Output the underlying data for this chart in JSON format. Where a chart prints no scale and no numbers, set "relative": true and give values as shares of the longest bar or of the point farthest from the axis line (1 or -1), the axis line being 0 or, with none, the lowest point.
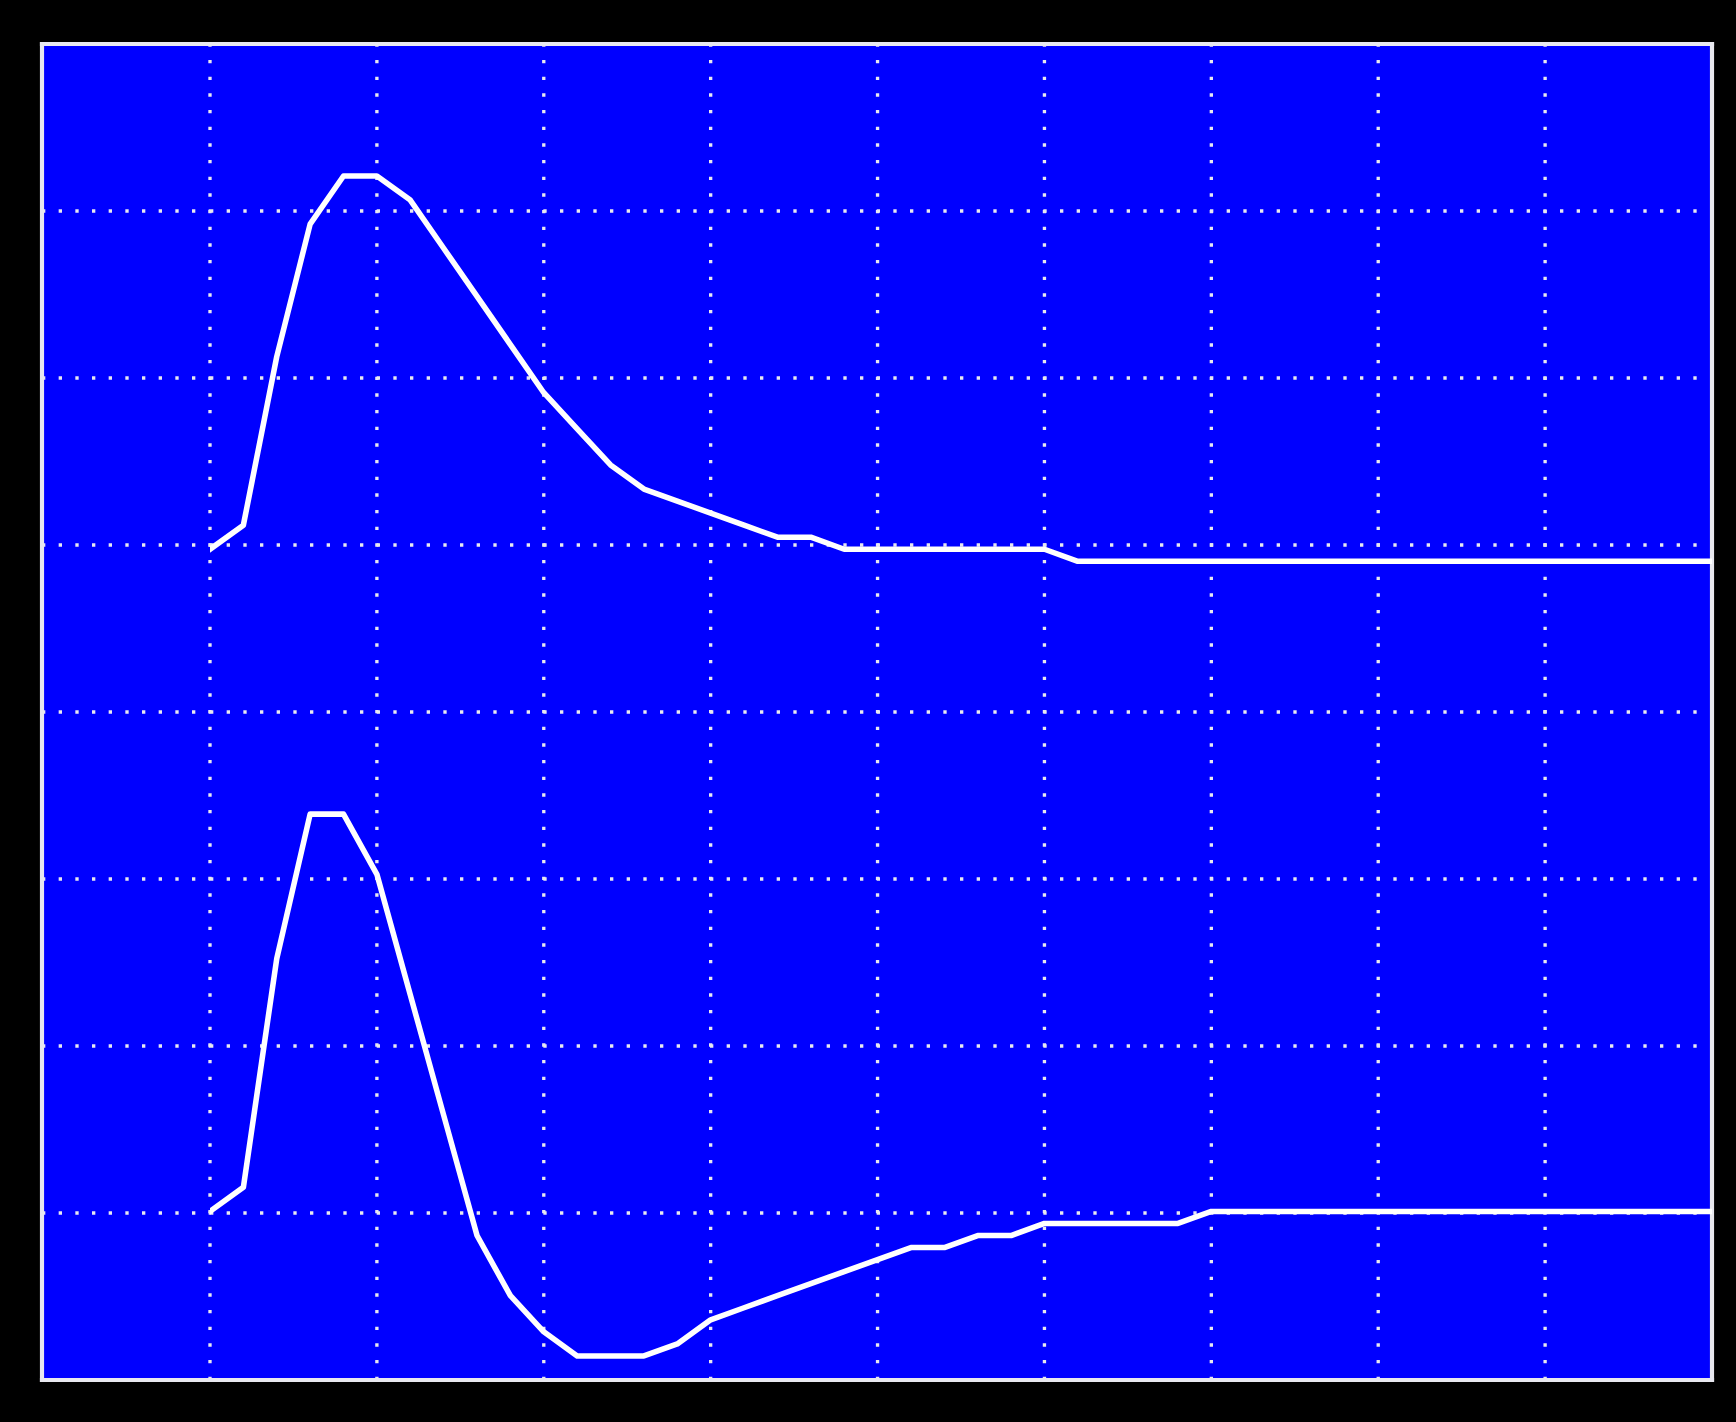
{
  "chart_data": {
    "type": "line",
    "relative": true,
    "grid": true,
    "legend": false,
    "marker": "none",
    "line_style": "solid",
    "categories": [
      null,
      null,
      null,
      null,
      null,
      null,
      null,
      null,
      null,
      null,
      null,
      null,
      null,
      null,
      null,
      null,
      null,
      null,
      null,
      null,
      null,
      null,
      null,
      null,
      null,
      null,
      null,
      null,
      null,
      null,
      null,
      null,
      null,
      null,
      null,
      null,
      null,
      null,
      null,
      null,
      null,
      null,
      null,
      null,
      null,
      null
    ],
    "series": [
      {
        "color": "#ffffff",
        "values": [
          0.69,
          0.71,
          0.85,
          0.96,
          1.0,
          1.0,
          0.98,
          0.94,
          0.9,
          0.86,
          0.82,
          0.79,
          0.76,
          0.74,
          0.73,
          0.72,
          0.71,
          0.7,
          0.7,
          0.69,
          0.69,
          0.69,
          0.69,
          0.69,
          0.69,
          0.69,
          0.68,
          0.68,
          0.68,
          0.68,
          0.68,
          0.68,
          0.68,
          0.68,
          0.68,
          0.68,
          0.68,
          0.68,
          0.68,
          0.68,
          0.68,
          0.68,
          0.68,
          0.68,
          0.68,
          0.68
        ]
      },
      {
        "color": "#ffffff",
        "values": [
          0.14,
          0.16,
          0.35,
          0.47,
          0.47,
          0.42,
          0.32,
          0.22,
          0.12,
          0.07,
          0.04,
          0.02,
          0.02,
          0.02,
          0.03,
          0.05,
          0.06,
          0.07,
          0.08,
          0.09,
          0.1,
          0.11,
          0.11,
          0.12,
          0.12,
          0.13,
          0.13,
          0.13,
          0.13,
          0.13,
          0.14,
          0.14,
          0.14,
          0.14,
          0.14,
          0.14,
          0.14,
          0.14,
          0.14,
          0.14,
          0.14,
          0.14,
          0.14,
          0.14,
          0.14,
          0.14
        ]
      }
    ]
  }
}
